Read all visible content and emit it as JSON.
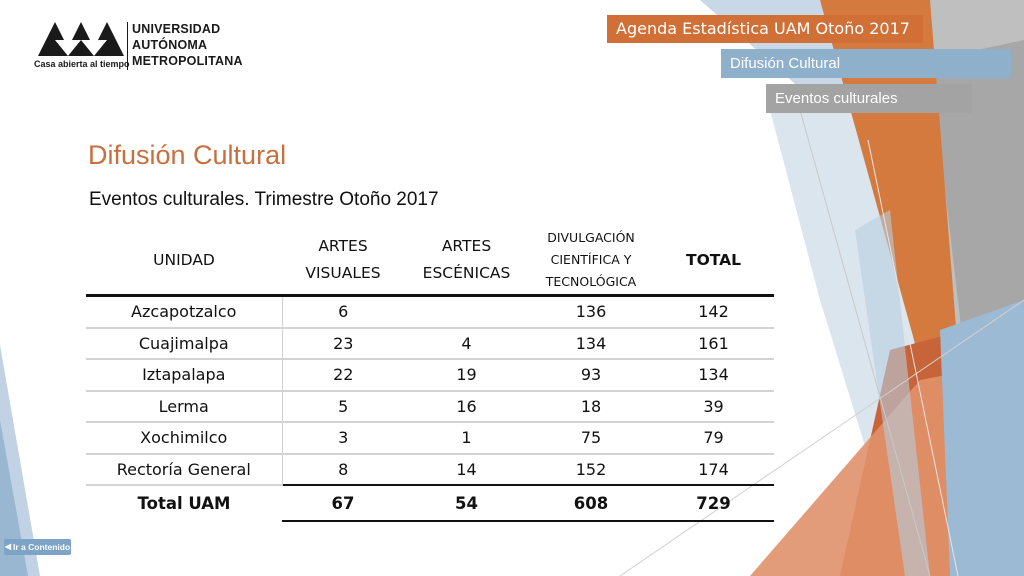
{
  "logo": {
    "tagline": "Casa abierta al tiempo",
    "name_lines": [
      "UNIVERSIDAD",
      "AUTÓNOMA",
      "METROPOLITANA"
    ]
  },
  "header": {
    "agenda": "Agenda Estadística UAM  Otoño 2017",
    "section": "Difusión Cultural",
    "subsection": "Eventos culturales"
  },
  "title": "Difusión Cultural",
  "subtitle": "Eventos culturales. Trimestre Otoño 2017",
  "table": {
    "headers": {
      "unidad": "UNIDAD",
      "artes_visuales": [
        "ARTES",
        "VISUALES"
      ],
      "artes_escenicas": [
        "ARTES",
        "ESCÉNICAS"
      ],
      "divulgacion": [
        "DIVULGACIÓN",
        "CIENTÍFICA Y",
        "TECNOLÓGICA"
      ],
      "total": "TOTAL"
    },
    "rows": [
      [
        "Azcapotzalco",
        "6",
        "",
        "136",
        "142"
      ],
      [
        "Cuajimalpa",
        "23",
        "4",
        "134",
        "161"
      ],
      [
        "Iztapalapa",
        "22",
        "19",
        "93",
        "134"
      ],
      [
        "Lerma",
        "5",
        "16",
        "18",
        "39"
      ],
      [
        "Xochimilco",
        "3",
        "1",
        "75",
        "79"
      ],
      [
        "Rectoría General",
        "8",
        "14",
        "152",
        "174"
      ]
    ],
    "total_row": [
      "Total UAM",
      "67",
      "54",
      "608",
      "729"
    ]
  },
  "nav": {
    "back_label": "Ir a Contenido"
  },
  "colors": {
    "orange": "#d06f36",
    "title_orange": "#c76f3e",
    "blue": "#8fb0cb",
    "gray": "#a3a3a3",
    "nav_blue": "#7da3c6"
  }
}
